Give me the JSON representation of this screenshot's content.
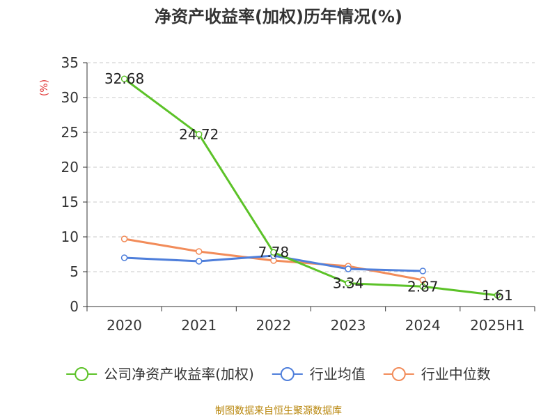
{
  "chart_data": {
    "type": "line",
    "title": "净资产收益率(加权)历年情况(%)",
    "ylabel": "(%)",
    "xlabel": "",
    "categories": [
      "2020",
      "2021",
      "2022",
      "2023",
      "2024",
      "2025H1"
    ],
    "ylim": [
      0,
      35
    ],
    "yticks": [
      0,
      5,
      10,
      15,
      20,
      25,
      30,
      35
    ],
    "grid": "horizontal dashed",
    "legend_position": "bottom",
    "series": [
      {
        "name": "公司净资产收益率(加权)",
        "color": "#5cc228",
        "values": [
          32.68,
          24.72,
          7.78,
          3.34,
          2.87,
          1.61
        ],
        "data_labels": [
          "32.68",
          "24.72",
          "7.78",
          "3.34",
          "2.87",
          "1.61"
        ]
      },
      {
        "name": "行业均值",
        "color": "#4f7fdb",
        "values": [
          7.0,
          6.5,
          7.3,
          5.4,
          5.1,
          null
        ]
      },
      {
        "name": "行业中位数",
        "color": "#f28c5a",
        "values": [
          9.7,
          7.9,
          6.6,
          5.8,
          3.8,
          null
        ]
      }
    ],
    "source": "制图数据来自恒生聚源数据库"
  }
}
